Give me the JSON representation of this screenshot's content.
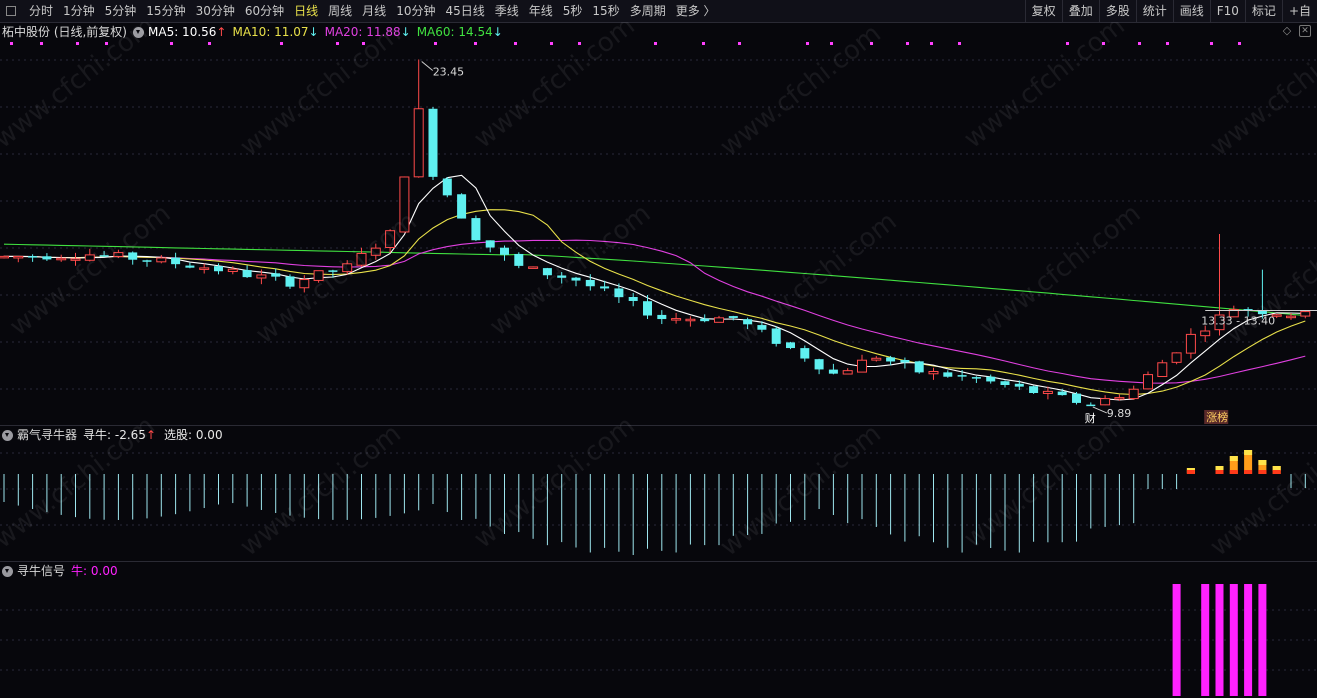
{
  "toolbar": {
    "timeframes": [
      "分时",
      "1分钟",
      "5分钟",
      "15分钟",
      "30分钟",
      "60分钟",
      "日线",
      "周线",
      "月线",
      "10分钟",
      "45日线",
      "季线",
      "年线",
      "5秒",
      "15秒",
      "多周期",
      "更多 〉"
    ],
    "active_index": 6,
    "tools": [
      "复权",
      "叠加",
      "多股",
      "统计",
      "画线",
      "F10",
      "标记",
      "+自"
    ]
  },
  "main_panel": {
    "title": "柘中股份 (日线,前复权)",
    "ma5": {
      "label": "MA5: 10.56",
      "arrow": "↑",
      "color": "#ffffff"
    },
    "ma10": {
      "label": "MA10: 11.07",
      "arrow": "↓",
      "color": "#e8e04a"
    },
    "ma20": {
      "label": "MA20: 11.88",
      "arrow": "↓",
      "color": "#e040e0"
    },
    "ma60": {
      "label": "MA60: 14.54",
      "arrow": "↓",
      "color": "#40e040"
    },
    "annotations": {
      "high": "23.45",
      "low": "9.89",
      "current_range": "13.33 - 13.40",
      "tag_cai": "财",
      "tag_zhangbang": "涨榜"
    }
  },
  "indicator1": {
    "name": "霸气寻牛器",
    "value_label": "寻牛: -2.65",
    "arrow": "↑",
    "select_label": "选股: 0.00"
  },
  "indicator2": {
    "name": "寻牛信号",
    "value_label": "牛: 0.00"
  },
  "watermark": "www.cfchi.com",
  "colors": {
    "up": "#ff4a4a",
    "down": "#5ff0f0",
    "ma5": "#ffffff",
    "ma10": "#e8e04a",
    "ma20": "#e040e0",
    "ma60": "#40e040",
    "signal": "#ff22ff"
  },
  "chart_data": {
    "type": "candlestick",
    "price_range": [
      9.89,
      23.45
    ],
    "high": 23.45,
    "low": 9.89,
    "last_range": [
      13.33,
      13.4
    ],
    "ma": {
      "MA5": 10.56,
      "MA10": 11.07,
      "MA20": 11.88,
      "MA60": 14.54
    },
    "oscillator_last": -2.65,
    "select_value": 0.0,
    "signal_value": 0.0
  }
}
